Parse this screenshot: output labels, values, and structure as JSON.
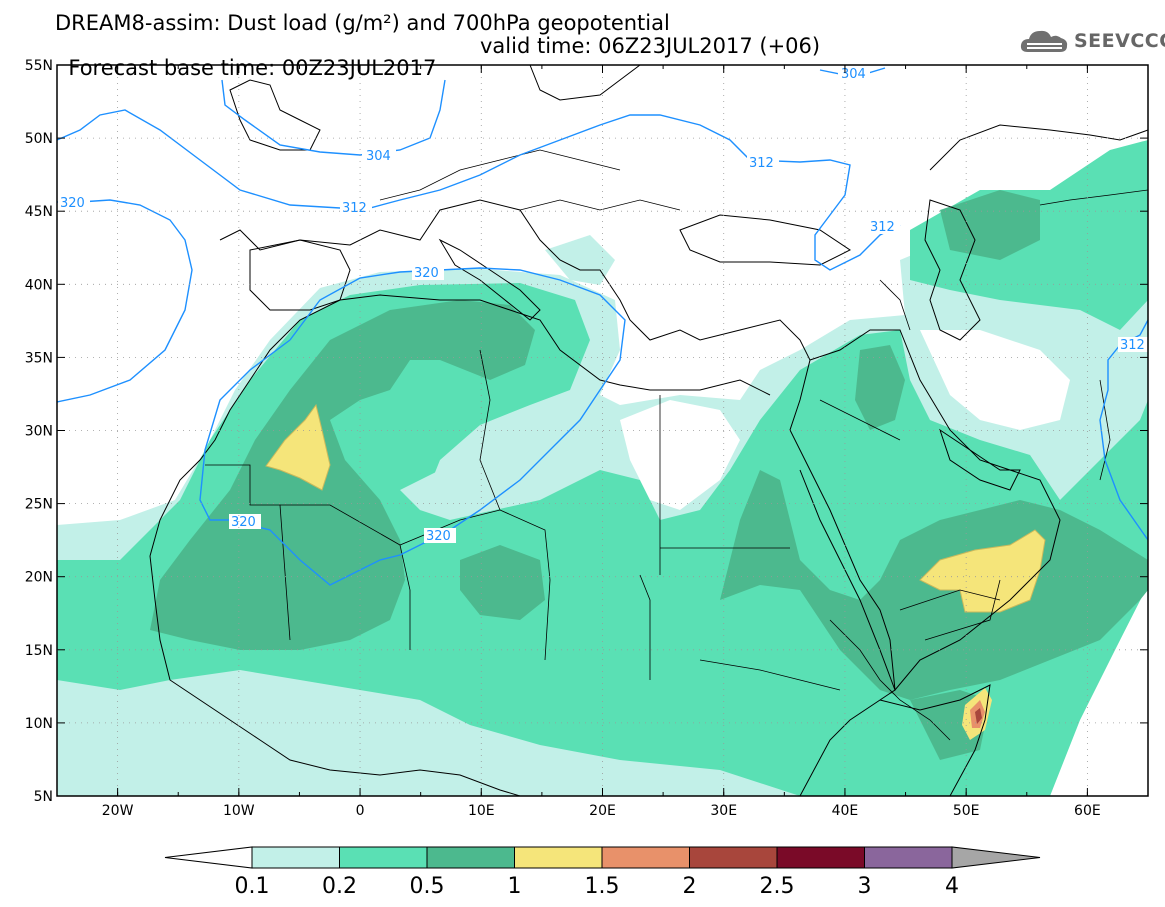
{
  "header": {
    "title_line1": "DREAM8-assim: Dust load (g/m²) and 700hPa geopotential",
    "title_line2_left": "Forecast base time: 00Z23JUL2017",
    "title_line2_right": "valid time: 06Z23JUL2017 (+06)",
    "logo_text": "SEEVCCC",
    "logo_icon": "cloud-icon"
  },
  "map": {
    "lon_range": [
      -25,
      65
    ],
    "lat_range": [
      5,
      55
    ],
    "lat_ticks": [
      {
        "value": 55,
        "label": "55N"
      },
      {
        "value": 50,
        "label": "50N"
      },
      {
        "value": 45,
        "label": "45N"
      },
      {
        "value": 40,
        "label": "40N"
      },
      {
        "value": 35,
        "label": "35N"
      },
      {
        "value": 30,
        "label": "30N"
      },
      {
        "value": 25,
        "label": "25N"
      },
      {
        "value": 20,
        "label": "20N"
      },
      {
        "value": 15,
        "label": "15N"
      },
      {
        "value": 10,
        "label": "10N"
      },
      {
        "value": 5,
        "label": "5N"
      }
    ],
    "lon_ticks": [
      {
        "value": -20,
        "label": "20W"
      },
      {
        "value": -10,
        "label": "10W"
      },
      {
        "value": 0,
        "label": "0"
      },
      {
        "value": 10,
        "label": "10E"
      },
      {
        "value": 20,
        "label": "20E"
      },
      {
        "value": 30,
        "label": "30E"
      },
      {
        "value": 40,
        "label": "40E"
      },
      {
        "value": 50,
        "label": "50E"
      },
      {
        "value": 60,
        "label": "60E"
      }
    ],
    "contour_labels": [
      "304",
      "304",
      "312",
      "312",
      "312",
      "312",
      "320",
      "320",
      "320",
      "320"
    ],
    "contour_color": "#1e90ff"
  },
  "colorbar": {
    "labels": [
      "0.1",
      "0.2",
      "0.5",
      "1",
      "1.5",
      "2",
      "2.5",
      "3",
      "4"
    ],
    "colors": [
      "#c2f0e8",
      "#5ae0b4",
      "#4cb98e",
      "#f5e57a",
      "#e8916a",
      "#a8463c",
      "#7a0a28",
      "#8a669c"
    ],
    "end_colors": {
      "low": "#ffffff",
      "high": "#a6a6a6"
    }
  }
}
